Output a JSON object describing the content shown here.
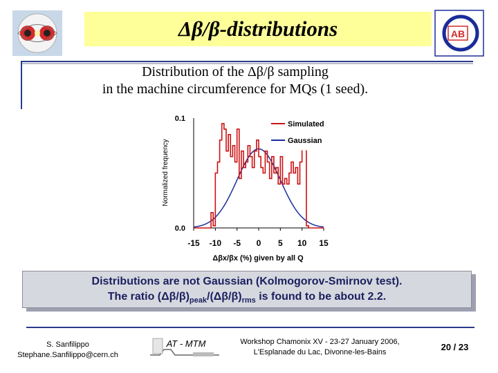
{
  "slide": {
    "title": "Δβ/β-distributions",
    "subtitle_line1": "Distribution of the Δβ/β sampling",
    "subtitle_line2": "in the machine circumference for MQs (1 seed).",
    "note_line1": "Distributions are not Gaussian (Kolmogorov-Smirnov test).",
    "note_line2_a": "The ratio (Δβ/β)",
    "note_line2_sub1": "peak",
    "note_line2_b": "/(Δβ/β)",
    "note_line2_sub2": "rms",
    "note_line2_c": " is found to be about 2.2."
  },
  "footer": {
    "author_name": "S. Sanfilippo",
    "author_email": "Stephane.Sanfilippo@cern.ch",
    "group_label": "AT - MTM",
    "workshop_line1": "Workshop Chamonix XV - 23-27 January 2006,",
    "workshop_line2": "L'Esplanade du Lac, Divonne-les-Bains",
    "page": "20 / 23"
  },
  "logos": {
    "right_label": "AB"
  },
  "colors": {
    "title_bg": "#ffff99",
    "rule_blue": "#2b3a8c",
    "simulated": "#cc1111",
    "gaussian": "#1a2c99",
    "note_bg": "#d6d8df"
  },
  "chart_data": {
    "type": "line",
    "ylabel": "Normalized frequency",
    "xlabel": "Δβx/βx (%) given by all Q",
    "xlim": [
      -15,
      15
    ],
    "ylim": [
      0,
      0.1
    ],
    "y_ticks": [
      "0.0",
      "0.1"
    ],
    "x_ticks": [
      -15,
      -10,
      -5,
      0,
      5,
      10,
      15
    ],
    "x_tick_labels": [
      "-15",
      "-10",
      "-5",
      "0",
      "5",
      "10",
      "15"
    ],
    "legend": "top-right",
    "series": [
      {
        "name": "Simulated",
        "style": "step",
        "color": "#cc1111",
        "x": [
          -15,
          -14.5,
          -14,
          -13.5,
          -13,
          -12.5,
          -12,
          -11.5,
          -11,
          -10.5,
          -10,
          -9.5,
          -9,
          -8.5,
          -8,
          -7.5,
          -7,
          -6.5,
          -6,
          -5.5,
          -5,
          -4.5,
          -4,
          -3.5,
          -3,
          -2.5,
          -2,
          -1.5,
          -1,
          -0.5,
          0,
          0.5,
          1,
          1.5,
          2,
          2.5,
          3,
          3.5,
          4,
          4.5,
          5,
          5.5,
          6,
          6.5,
          7,
          7.5,
          8,
          8.5,
          9,
          9.5,
          10,
          10.5,
          11,
          11.5,
          12,
          12.5,
          13,
          13.5,
          14,
          14.5
        ],
        "values": [
          0,
          0,
          0,
          0,
          0,
          0,
          0,
          0,
          0.014,
          0.002,
          0.05,
          0.06,
          0.08,
          0.095,
          0.09,
          0.07,
          0.085,
          0.065,
          0.075,
          0.06,
          0.09,
          0.045,
          0.07,
          0.055,
          0.06,
          0.075,
          0.065,
          0.055,
          0.07,
          0.08,
          0.065,
          0.055,
          0.05,
          0.07,
          0.06,
          0.045,
          0.065,
          0.05,
          0.055,
          0.04,
          0.065,
          0.04,
          0.045,
          0.04,
          0.05,
          0.06,
          0.05,
          0.055,
          0.04,
          0.06,
          0.075,
          0.075,
          0.002,
          0,
          0,
          0,
          0,
          0,
          0,
          0
        ]
      },
      {
        "name": "Gaussian",
        "style": "smooth",
        "color": "#1a2c99",
        "mean": 0,
        "sigma": 5.0,
        "peak": 0.072
      }
    ]
  }
}
